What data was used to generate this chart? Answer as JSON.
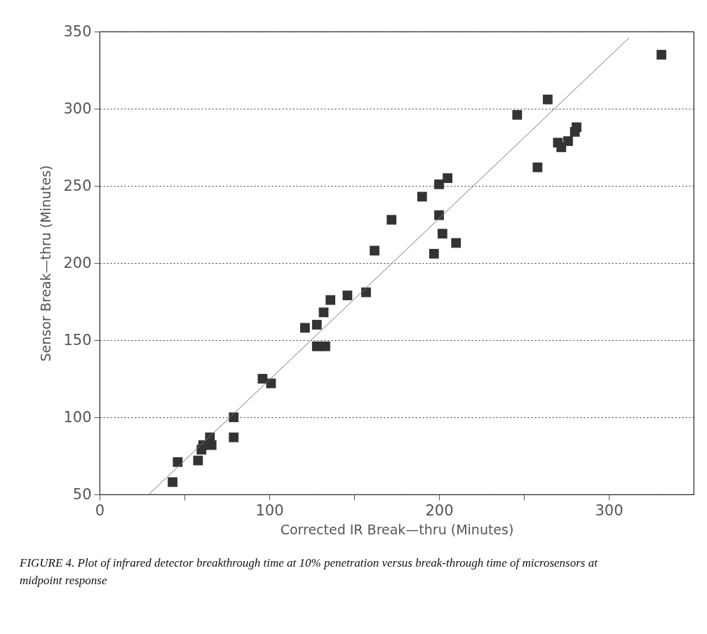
{
  "chart_data": {
    "type": "scatter",
    "xlabel": "Corrected IR Break—thru (Minutes)",
    "ylabel": "Sensor Break—thru (Minutes)",
    "annotations": [
      "FIGURE 4. Plot of infrared detector breakthrough time at 10% penetration versus break-through time of microsensors at midpoint response"
    ],
    "xlim": [
      0,
      350
    ],
    "xticks": [
      0,
      {
        "value": 50,
        "label": null
      },
      100,
      {
        "value": 150,
        "label": null
      },
      200,
      {
        "value": 250,
        "label": null
      },
      300
    ],
    "ylim": [
      50,
      350
    ],
    "yticks": [
      50,
      100,
      150,
      200,
      250,
      300,
      350
    ],
    "grid": "y",
    "marker": "square",
    "series": [
      {
        "color": "#333333",
        "x": [
          43,
          46,
          58,
          60,
          61,
          65,
          66,
          79,
          79,
          96,
          101,
          121,
          128,
          128,
          133,
          132,
          136,
          146,
          157,
          162,
          172,
          190,
          197,
          200,
          200,
          202,
          205,
          210,
          246,
          264,
          258,
          270,
          272,
          276,
          280,
          281,
          331
        ],
        "values": [
          58,
          71,
          72,
          79,
          82,
          87,
          82,
          100,
          87,
          125,
          122,
          158,
          160,
          146,
          146,
          168,
          176,
          179,
          181,
          208,
          228,
          243,
          206,
          251,
          231,
          219,
          255,
          213,
          296,
          306,
          262,
          278,
          275,
          279,
          285,
          288,
          335
        ]
      },
      {
        "type": "line",
        "color": "#777777",
        "x": [
          29,
          312
        ],
        "values": [
          50,
          346
        ],
        "marker": "none"
      }
    ]
  }
}
